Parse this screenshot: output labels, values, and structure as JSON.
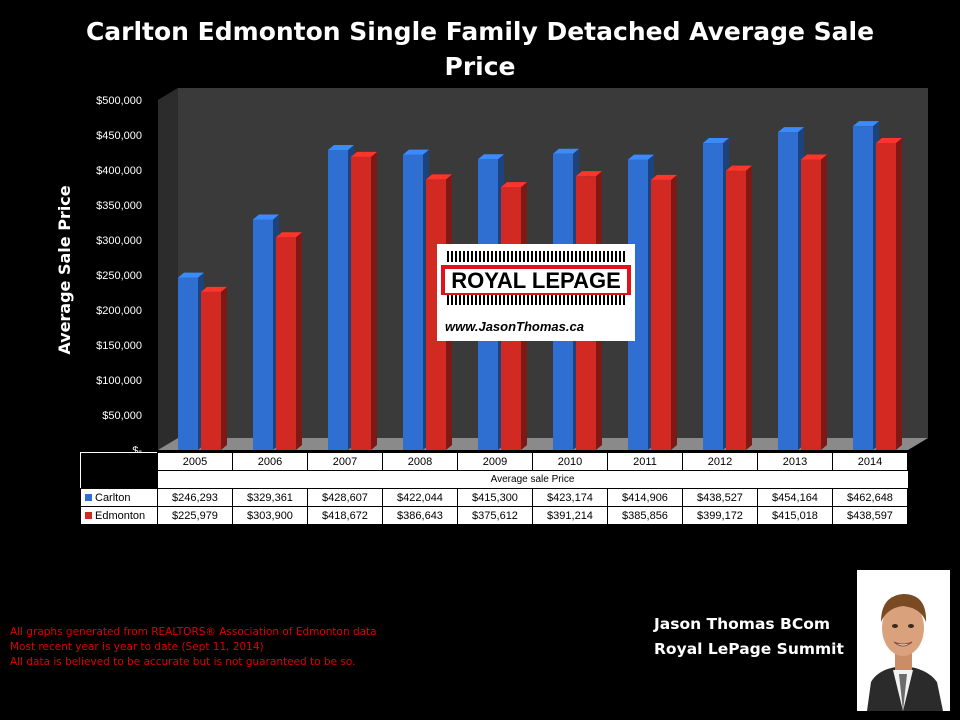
{
  "title": "Carlton Edmonton Single Family Detached Average Sale Price",
  "y_axis_label": "Average Sale Price",
  "logo": {
    "brand": "ROYAL LEPAGE",
    "url": "www.JasonThomas.ca"
  },
  "notes": [
    "All graphs generated from REALTORS® Association of Edmonton data",
    "Most recent year is year to date (Sept 11, 2014)",
    "All data is believed to be accurate but is not guaranteed to be so."
  ],
  "agent": {
    "name": "Jason Thomas BCom",
    "company": "Royal LePage Summit"
  },
  "colors": {
    "carlton": "#2f6fd1",
    "edmonton": "#d22a23",
    "plot_bg": "#3a3a3a"
  },
  "chart_data": {
    "type": "bar",
    "title": "Carlton Edmonton Single Family Detached Average Sale Price",
    "xlabel": "Average sale Price",
    "ylabel": "Average Sale Price",
    "ylim": [
      0,
      500000
    ],
    "y_ticks": [
      "$-",
      "$50,000",
      "$100,000",
      "$150,000",
      "$200,000",
      "$250,000",
      "$300,000",
      "$350,000",
      "$400,000",
      "$450,000",
      "$500,000"
    ],
    "categories": [
      "2005",
      "2006",
      "2007",
      "2008",
      "2009",
      "2010",
      "2011",
      "2012",
      "2013",
      "2014"
    ],
    "legend": "data-table",
    "grid": false,
    "series": [
      {
        "name": "Carlton",
        "values": [
          246293,
          329361,
          428607,
          422044,
          415300,
          423174,
          414906,
          438527,
          454164,
          462648
        ],
        "labels": [
          "$246,293",
          "$329,361",
          "$428,607",
          "$422,044",
          "$415,300",
          "$423,174",
          "$414,906",
          "$438,527",
          "$454,164",
          "$462,648"
        ]
      },
      {
        "name": "Edmonton",
        "values": [
          225979,
          303900,
          418672,
          386643,
          375612,
          391214,
          385856,
          399172,
          415018,
          438597
        ],
        "labels": [
          "$225,979",
          "$303,900",
          "$418,672",
          "$386,643",
          "$375,612",
          "$391,214",
          "$385,856",
          "$399,172",
          "$415,018",
          "$438,597"
        ]
      }
    ]
  }
}
